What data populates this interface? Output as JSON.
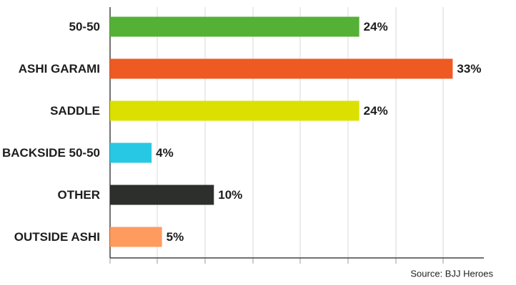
{
  "chart_data": {
    "type": "hbar",
    "categories": [
      "50-50",
      "ASHI GARAMI",
      "SADDLE",
      "BACKSIDE 50-50",
      "OTHER",
      "OUTSIDE ASHI"
    ],
    "values": [
      24,
      33,
      24,
      4,
      10,
      5
    ],
    "value_labels": [
      "24%",
      "33%",
      "24%",
      "4%",
      "10%",
      "5%"
    ],
    "colors": [
      "#55b135",
      "#ee5a22",
      "#dce000",
      "#27c8e4",
      "#2c2f2b",
      "#ff9b5f"
    ],
    "xlim": [
      0,
      36
    ],
    "source": "Source: BJJ Heroes"
  }
}
